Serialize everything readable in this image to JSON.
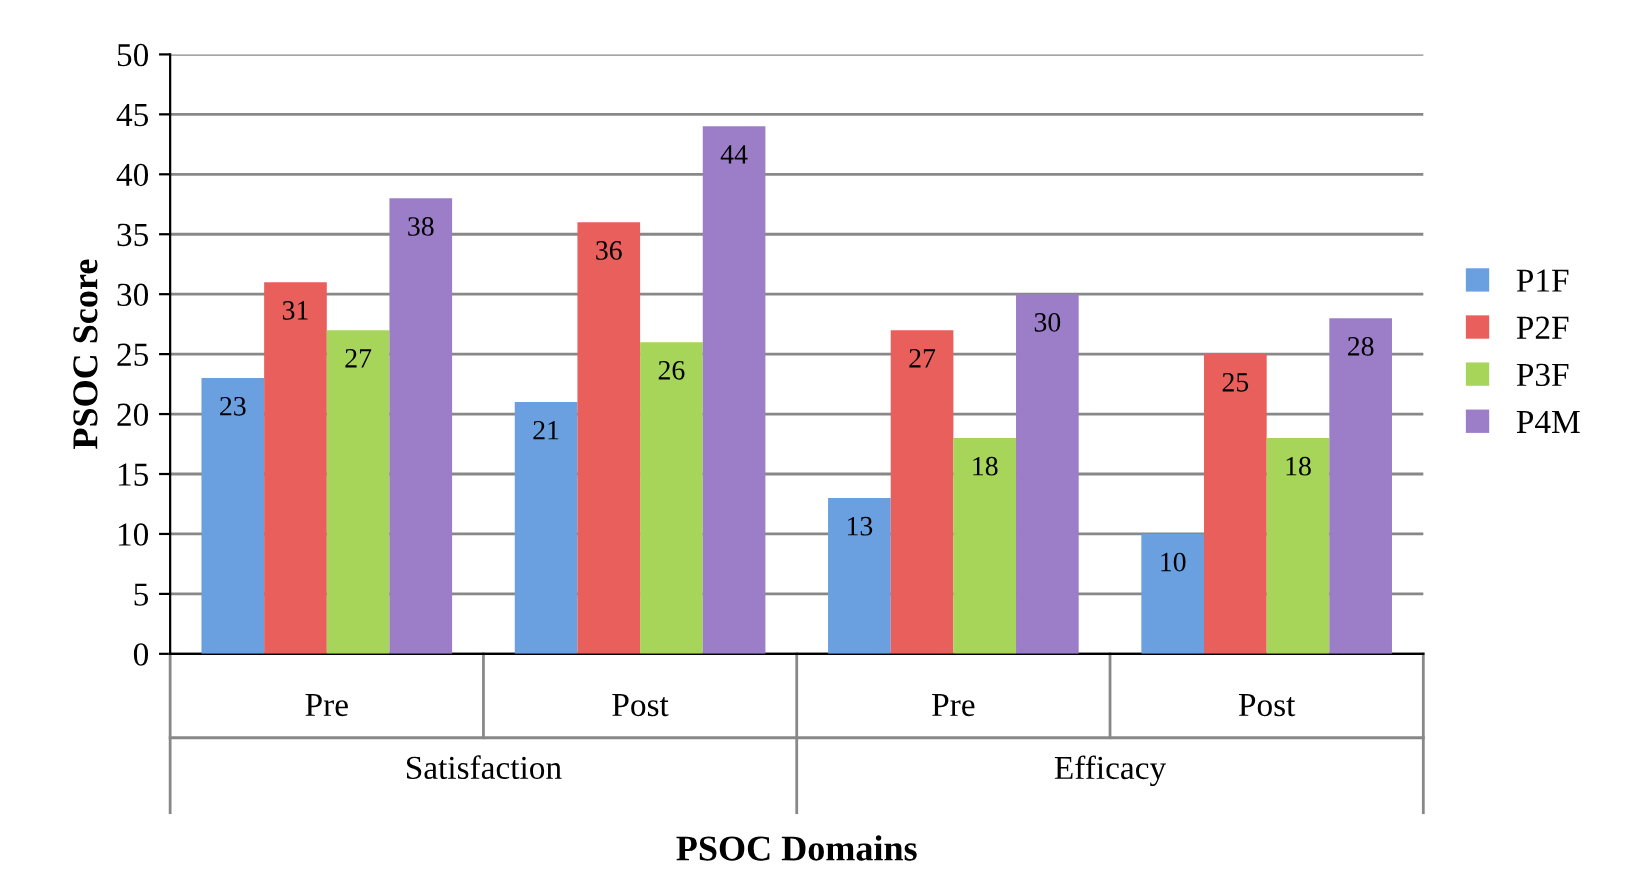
{
  "chart_data": {
    "type": "bar",
    "xlabel": "PSOC Domains",
    "ylabel": "PSOC Score",
    "categories": [
      "Pre",
      "Post",
      "Pre",
      "Post"
    ],
    "series": [
      {
        "name": "P1F",
        "color": "#6a9fe0",
        "values": [
          23,
          21,
          13,
          10
        ]
      },
      {
        "name": "P2F",
        "color": "#e85f5b",
        "values": [
          31,
          36,
          27,
          25
        ]
      },
      {
        "name": "P3F",
        "color": "#a6d55a",
        "values": [
          27,
          26,
          18,
          18
        ]
      },
      {
        "name": "P4M",
        "color": "#9c7dc8",
        "values": [
          38,
          44,
          30,
          28
        ]
      }
    ],
    "annotations": [
      "Satisfaction",
      "Efficacy"
    ],
    "ylim": [
      0,
      50
    ],
    "yticks": [
      0,
      5,
      10,
      15,
      20,
      25,
      30,
      35,
      40,
      45,
      50
    ],
    "grid": "y",
    "legend": "right",
    "data_labels": true
  }
}
